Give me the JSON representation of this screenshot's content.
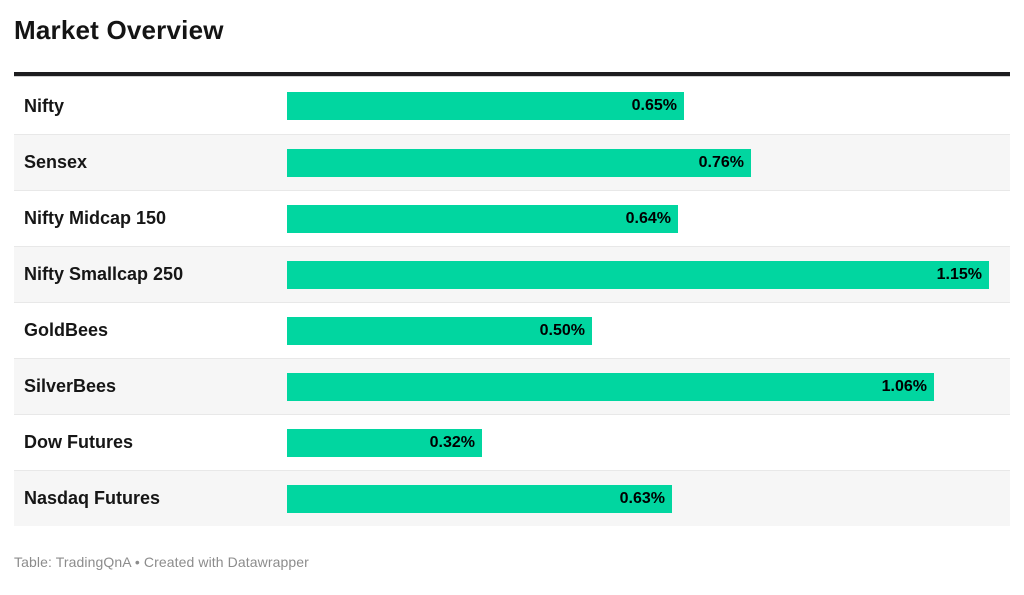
{
  "header": {
    "title": "Market Overview"
  },
  "chart_data": {
    "type": "bar",
    "orientation": "horizontal",
    "title": "Market Overview",
    "categories": [
      "Nifty",
      "Sensex",
      "Nifty Midcap 150",
      "Nifty Smallcap 250",
      "GoldBees",
      "SilverBees",
      "Dow Futures",
      "Nasdaq Futures"
    ],
    "values": [
      0.65,
      0.76,
      0.64,
      1.15,
      0.5,
      1.06,
      0.32,
      0.63
    ],
    "value_labels": [
      "0.65%",
      "0.76%",
      "0.64%",
      "1.15%",
      "0.50%",
      "1.06%",
      "0.32%",
      "0.63%"
    ],
    "unit": "%",
    "xlim": [
      0,
      1.15
    ],
    "grid": false,
    "legend": "none",
    "value_label_position": "inside-end",
    "striped_rows": true
  },
  "colors": {
    "bar": "#01d6a0",
    "stripe": "#f6f6f6",
    "divider": "#e8e8e8",
    "header_rule": "#1d1d1f",
    "title_text": "#141414",
    "value_text": "#000000",
    "footer_text": "#8c8c8c"
  },
  "footer": {
    "text": "Table: TradingQnA • Created with Datawrapper"
  }
}
